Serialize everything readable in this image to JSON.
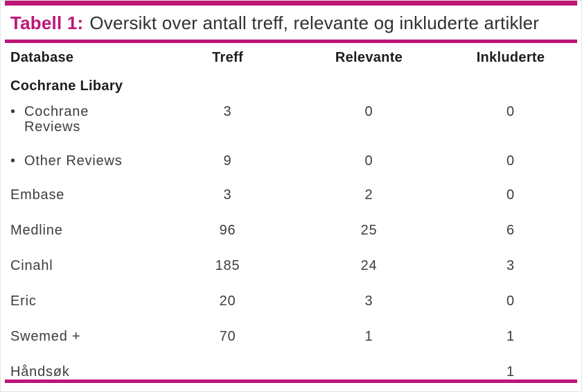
{
  "caption": {
    "label": "Tabell 1:",
    "text": "Oversikt over antall treff, relevante og inkluderte artikler"
  },
  "colors": {
    "accent": "#bd1677",
    "heading_text": "#1d1d1b",
    "body_text": "#3d3d3c"
  },
  "chart_data": {
    "type": "table",
    "title": "Tabell 1: Oversikt over antall treff, relevante og inkluderte artikler",
    "bullet_char": "•",
    "columns": [
      {
        "key": "database",
        "label": "Database"
      },
      {
        "key": "treff",
        "label": "Treff"
      },
      {
        "key": "relevante",
        "label": "Relevante"
      },
      {
        "key": "inkluderte",
        "label": "Inkluderte"
      }
    ],
    "rows": [
      {
        "database": "Cochrane Libary",
        "treff": "",
        "relevante": "",
        "inkluderte": "",
        "style": "group"
      },
      {
        "database": "Cochrane\nReviews",
        "treff": "3",
        "relevante": "0",
        "inkluderte": "0",
        "style": "bullet"
      },
      {
        "database": "Other Reviews",
        "treff": "9",
        "relevante": "0",
        "inkluderte": "0",
        "style": "bullet"
      },
      {
        "database": "Embase",
        "treff": "3",
        "relevante": "2",
        "inkluderte": "0",
        "style": ""
      },
      {
        "database": "Medline",
        "treff": "96",
        "relevante": "25",
        "inkluderte": "6",
        "style": ""
      },
      {
        "database": "Cinahl",
        "treff": "185",
        "relevante": "24",
        "inkluderte": "3",
        "style": ""
      },
      {
        "database": "Eric",
        "treff": "20",
        "relevante": "3",
        "inkluderte": "0",
        "style": ""
      },
      {
        "database": "Swemed +",
        "treff": "70",
        "relevante": "1",
        "inkluderte": "1",
        "style": ""
      },
      {
        "database": "Håndsøk",
        "treff": "",
        "relevante": "",
        "inkluderte": "1",
        "style": "last"
      }
    ]
  }
}
